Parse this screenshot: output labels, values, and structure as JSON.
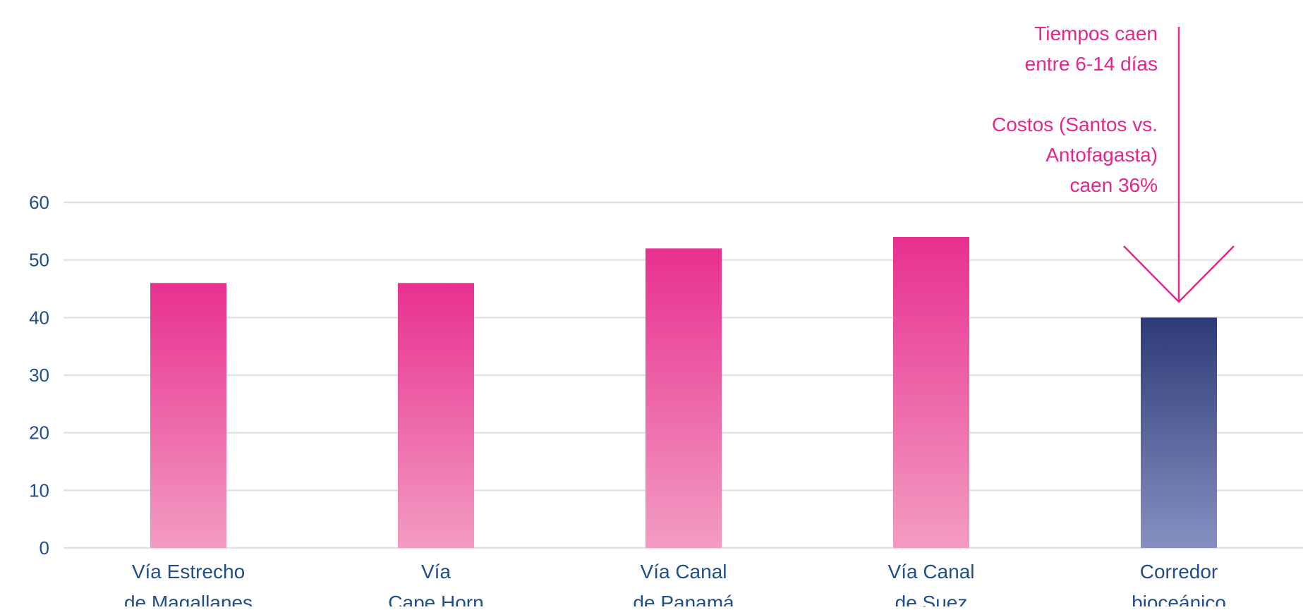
{
  "chart_data": {
    "type": "bar",
    "title": "",
    "xlabel": "",
    "ylabel": "",
    "ylim": [
      0,
      60
    ],
    "yticks": [
      0,
      10,
      20,
      30,
      40,
      50,
      60
    ],
    "grid": true,
    "categories": [
      [
        "Vía Estrecho",
        "de Magallanes"
      ],
      [
        "Vía",
        "Cape Horn"
      ],
      [
        "Vía Canal",
        "de Panamá"
      ],
      [
        "Vía Canal",
        "de Suez"
      ],
      [
        "Corredor",
        "bioceánico"
      ]
    ],
    "values": [
      46,
      46,
      52,
      54,
      40
    ],
    "highlight_index": 4,
    "annotation": {
      "lines": [
        "Tiempos caen",
        "entre 6-14 días",
        "",
        "Costos (Santos vs.",
        "Antofagasta)",
        "caen 36%"
      ],
      "target_category_index": 4
    }
  },
  "colors": {
    "bar_top": "#E8308F",
    "bar_bottom": "#F29CC2",
    "highlight_top": "#2E3A78",
    "highlight_bottom": "#8690C0",
    "annotation": "#E5268A",
    "axis_text": "#1F4E8C",
    "grid": "#E3E3E3"
  }
}
